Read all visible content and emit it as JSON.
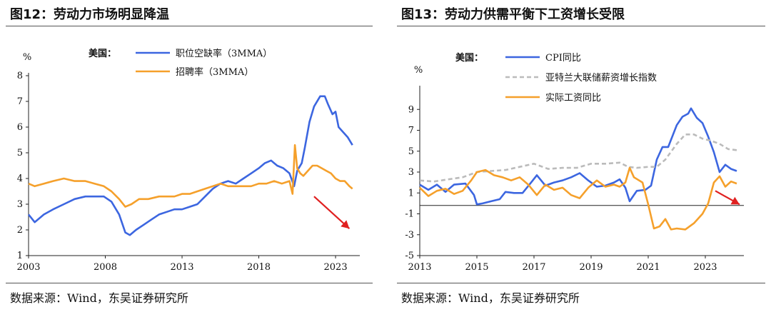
{
  "panels": [
    {
      "title": "图12：劳动力市场明显降温",
      "source": "数据来源：Wind，东吴证券研究所"
    },
    {
      "title": "图13：劳动力供需平衡下工资增长受限",
      "source": "数据来源：Wind，东吴证券研究所"
    }
  ],
  "chart_data": [
    {
      "type": "line",
      "ylabel": "%",
      "legend_title": "美国：",
      "legend_position": "top-center",
      "ylim": [
        1,
        8
      ],
      "xlim": [
        2003,
        2024.3
      ],
      "x_ticks": [
        2003,
        2008,
        2013,
        2018,
        2023
      ],
      "y_ticks": [
        1,
        2,
        3,
        4,
        5,
        6,
        7,
        8
      ],
      "series": [
        {
          "name": "职位空缺率（3MMA）",
          "color": "#3C66E0",
          "x": [
            2003.0,
            2003.4,
            2004.0,
            2004.6,
            2005.3,
            2006.0,
            2006.7,
            2007.3,
            2007.9,
            2008.4,
            2008.9,
            2009.3,
            2009.6,
            2010.0,
            2010.5,
            2011.0,
            2011.5,
            2012.0,
            2012.5,
            2013.0,
            2013.5,
            2014.0,
            2014.5,
            2015.0,
            2015.5,
            2016.0,
            2016.5,
            2017.0,
            2017.5,
            2018.0,
            2018.4,
            2018.8,
            2019.2,
            2019.6,
            2020.0,
            2020.3,
            2020.5,
            2020.8,
            2021.0,
            2021.3,
            2021.6,
            2022.0,
            2022.3,
            2022.5,
            2022.8,
            2023.0,
            2023.2,
            2023.5,
            2023.8,
            2024.0,
            2024.1
          ],
          "y": [
            2.6,
            2.3,
            2.6,
            2.8,
            3.0,
            3.2,
            3.3,
            3.3,
            3.3,
            3.1,
            2.6,
            1.9,
            1.8,
            2.0,
            2.2,
            2.4,
            2.6,
            2.7,
            2.8,
            2.8,
            2.9,
            3.0,
            3.3,
            3.6,
            3.8,
            3.9,
            3.8,
            4.0,
            4.2,
            4.4,
            4.6,
            4.7,
            4.5,
            4.4,
            4.2,
            3.7,
            4.3,
            4.6,
            5.2,
            6.2,
            6.8,
            7.2,
            7.2,
            6.9,
            6.5,
            6.6,
            6.0,
            5.8,
            5.6,
            5.4,
            5.3
          ]
        },
        {
          "name": "招聘率（3MMA）",
          "color": "#F5A02B",
          "x": [
            2003.0,
            2003.4,
            2004.0,
            2004.6,
            2005.3,
            2006.0,
            2006.7,
            2007.3,
            2007.9,
            2008.4,
            2008.9,
            2009.3,
            2009.7,
            2010.2,
            2010.8,
            2011.5,
            2012.0,
            2012.5,
            2013.0,
            2013.5,
            2014.0,
            2014.5,
            2015.0,
            2015.5,
            2016.0,
            2016.5,
            2017.0,
            2017.5,
            2018.0,
            2018.5,
            2019.0,
            2019.5,
            2020.0,
            2020.2,
            2020.35,
            2020.5,
            2020.7,
            2020.9,
            2021.2,
            2021.5,
            2021.8,
            2022.1,
            2022.4,
            2022.7,
            2023.0,
            2023.3,
            2023.6,
            2023.9,
            2024.1
          ],
          "y": [
            3.8,
            3.7,
            3.8,
            3.9,
            4.0,
            3.9,
            3.9,
            3.8,
            3.7,
            3.5,
            3.2,
            2.9,
            3.0,
            3.2,
            3.2,
            3.3,
            3.3,
            3.3,
            3.4,
            3.4,
            3.5,
            3.6,
            3.7,
            3.8,
            3.7,
            3.7,
            3.7,
            3.7,
            3.8,
            3.8,
            3.9,
            3.8,
            3.9,
            3.4,
            5.3,
            4.4,
            4.2,
            4.1,
            4.3,
            4.5,
            4.5,
            4.4,
            4.3,
            4.2,
            4.0,
            3.9,
            3.9,
            3.7,
            3.6
          ]
        }
      ],
      "annotation": {
        "type": "arrow",
        "color": "#E02020",
        "from": [
          2021.6,
          3.3
        ],
        "to": [
          2023.9,
          2.05
        ]
      }
    },
    {
      "type": "line",
      "ylabel": "%",
      "legend_title": "美国：",
      "legend_position": "top-center",
      "ylim": [
        -5,
        11
      ],
      "xlim": [
        2013,
        2024.2
      ],
      "x_ticks": [
        2013,
        2015,
        2017,
        2019,
        2021,
        2023
      ],
      "y_ticks": [
        -5,
        -3,
        -1,
        1,
        3,
        5,
        7,
        9
      ],
      "series": [
        {
          "name": "CPI同比",
          "color": "#3C66E0",
          "dash": "none",
          "x": [
            2013.0,
            2013.3,
            2013.6,
            2013.9,
            2014.2,
            2014.6,
            2014.9,
            2015.0,
            2015.2,
            2015.5,
            2015.8,
            2016.0,
            2016.3,
            2016.6,
            2016.9,
            2017.1,
            2017.4,
            2017.7,
            2018.0,
            2018.3,
            2018.6,
            2018.9,
            2019.2,
            2019.5,
            2019.8,
            2020.0,
            2020.2,
            2020.35,
            2020.6,
            2020.9,
            2021.1,
            2021.3,
            2021.5,
            2021.7,
            2022.0,
            2022.2,
            2022.4,
            2022.5,
            2022.7,
            2022.9,
            2023.1,
            2023.3,
            2023.5,
            2023.7,
            2023.9,
            2024.1
          ],
          "y": [
            1.8,
            1.3,
            1.8,
            1.1,
            1.8,
            1.9,
            0.8,
            -0.1,
            0.0,
            0.2,
            0.4,
            1.1,
            1.0,
            1.0,
            2.0,
            2.7,
            1.7,
            2.0,
            2.2,
            2.5,
            2.9,
            2.2,
            1.6,
            1.7,
            2.0,
            2.3,
            1.5,
            0.2,
            1.2,
            1.3,
            1.7,
            4.2,
            5.4,
            5.4,
            7.5,
            8.3,
            8.6,
            9.1,
            8.2,
            7.7,
            6.4,
            4.9,
            3.0,
            3.7,
            3.3,
            3.1
          ]
        },
        {
          "name": "亚特兰大联储薪资增长指数",
          "color": "#BBBBBB",
          "dash": "6,4",
          "x": [
            2013.0,
            2013.5,
            2014.0,
            2014.5,
            2015.0,
            2015.5,
            2016.0,
            2016.5,
            2017.0,
            2017.5,
            2018.0,
            2018.5,
            2019.0,
            2019.5,
            2020.0,
            2020.3,
            2020.6,
            2021.0,
            2021.3,
            2021.6,
            2022.0,
            2022.3,
            2022.6,
            2022.9,
            2023.2,
            2023.5,
            2023.8,
            2024.1
          ],
          "y": [
            2.2,
            2.1,
            2.3,
            2.5,
            3.0,
            3.1,
            3.2,
            3.5,
            3.8,
            3.3,
            3.4,
            3.4,
            3.8,
            3.8,
            3.9,
            3.5,
            3.4,
            3.5,
            3.5,
            4.2,
            5.7,
            6.6,
            6.6,
            6.2,
            6.0,
            5.7,
            5.2,
            5.1
          ]
        },
        {
          "name": "实际工资同比",
          "color": "#F5A02B",
          "dash": "none",
          "x": [
            2013.0,
            2013.3,
            2013.6,
            2013.9,
            2014.2,
            2014.5,
            2014.8,
            2015.0,
            2015.3,
            2015.6,
            2015.9,
            2016.2,
            2016.5,
            2016.8,
            2017.1,
            2017.4,
            2017.7,
            2018.0,
            2018.3,
            2018.6,
            2018.9,
            2019.2,
            2019.5,
            2019.8,
            2020.0,
            2020.2,
            2020.35,
            2020.5,
            2020.8,
            2021.0,
            2021.2,
            2021.4,
            2021.6,
            2021.8,
            2022.0,
            2022.3,
            2022.6,
            2022.9,
            2023.1,
            2023.3,
            2023.5,
            2023.7,
            2023.9,
            2024.1
          ],
          "y": [
            1.5,
            0.7,
            1.2,
            1.4,
            0.9,
            1.2,
            2.2,
            3.0,
            3.2,
            2.7,
            2.5,
            2.2,
            2.5,
            1.8,
            0.8,
            1.8,
            1.3,
            1.5,
            0.8,
            0.5,
            1.5,
            2.2,
            1.6,
            1.8,
            1.6,
            2.0,
            3.4,
            2.5,
            2.0,
            -0.1,
            -2.4,
            -2.2,
            -1.5,
            -2.5,
            -2.4,
            -2.5,
            -1.9,
            -1.0,
            0.0,
            2.0,
            2.6,
            1.6,
            2.1,
            1.9
          ]
        }
      ],
      "annotation": {
        "type": "arrow",
        "color": "#E02020",
        "from": [
          2023.35,
          1.2
        ],
        "to": [
          2024.2,
          -0.1
        ]
      }
    }
  ]
}
